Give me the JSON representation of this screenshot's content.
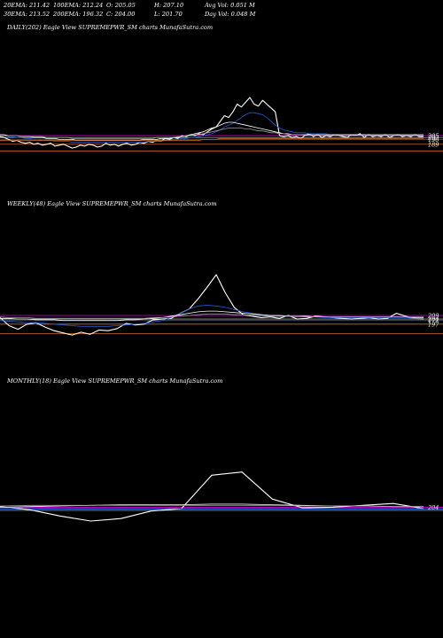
{
  "header": {
    "row1": [
      {
        "id": "ema20",
        "text": "20EMA: 211.42"
      },
      {
        "id": "ema100",
        "text": "100EMA: 212.24"
      },
      {
        "id": "open",
        "text": "O: 205.05"
      },
      {
        "id": "high",
        "text": "H: 207.10"
      },
      {
        "id": "avgvol",
        "text": "Avg Vol: 0.051 M"
      }
    ],
    "row2": [
      {
        "id": "ema30",
        "text": "30EMA: 213.52"
      },
      {
        "id": "ema200",
        "text": "200EMA: 196.32"
      },
      {
        "id": "close",
        "text": "C: 204.00"
      },
      {
        "id": "low",
        "text": "L: 201.70"
      },
      {
        "id": "dayvol",
        "text": "Day Vol: 0.048 M"
      }
    ]
  },
  "colors": {
    "background": "#000000",
    "price": "#ffffff",
    "ema_blue": "#1f5fd6",
    "ema_orange": "#d2691e",
    "ema_magenta": "#d400d4",
    "ema_gray": "#9a9a9a",
    "text": "#ffffff"
  },
  "panels": [
    {
      "id": "daily",
      "title": "DAILY(202) Eagle   View  SUPREMEPWR_SM charts MunafaSutra.com",
      "right_labels": [
        "205",
        "203",
        "196",
        "189"
      ]
    },
    {
      "id": "weekly",
      "title": "WEEKLY(48) Eagle   View  SUPREMEPWR_SM charts MunafaSutra.com",
      "right_labels": [
        "209",
        "204",
        "172",
        "197"
      ]
    },
    {
      "id": "monthly",
      "title": "MONTHLY(18) Eagle   View  SUPREMEPWR_SM charts MunafaSutra.com",
      "right_labels": [
        "204"
      ]
    }
  ],
  "chart_data": [
    {
      "type": "line",
      "title": "DAILY(202) Eagle   View  SUPREMEPWR_SM charts MunafaSutra.com",
      "ylim": [
        180,
        245
      ],
      "hlines": [
        {
          "value": 205,
          "color": "#d400d4"
        },
        {
          "value": 203,
          "color": "#9a9a9a"
        },
        {
          "value": 201,
          "color": "#1f5fd6"
        },
        {
          "value": 196,
          "color": "#d2691e"
        },
        {
          "value": 189,
          "color": "#d2691e"
        }
      ],
      "series": [
        {
          "color": "#ffffff",
          "values": [
            204,
            203,
            201,
            199,
            200,
            198,
            197,
            198,
            196,
            197,
            195,
            196,
            197,
            194,
            195,
            196,
            194,
            192,
            193,
            195,
            194,
            196,
            195,
            193,
            194,
            197,
            195,
            196,
            194,
            196,
            197,
            195,
            196,
            198,
            197,
            199,
            198,
            200,
            199,
            202,
            201,
            203,
            202,
            205,
            204,
            206,
            205,
            207,
            206,
            209,
            212,
            214,
            220,
            226,
            224,
            230,
            238,
            235,
            240,
            245,
            238,
            236,
            242,
            238,
            234,
            230,
            205,
            204,
            205,
            203,
            204,
            202,
            205,
            207,
            204,
            206,
            203,
            205,
            204,
            206,
            205,
            204,
            203,
            206,
            205,
            207,
            203,
            206,
            204,
            205,
            204,
            206,
            203,
            205,
            206,
            204,
            205,
            204,
            206,
            204,
            204
          ]
        },
        {
          "color": "#1f5fd6",
          "values": [
            205,
            205,
            204,
            204,
            203,
            203,
            202,
            202,
            201,
            201,
            200,
            200,
            200,
            199,
            199,
            199,
            199,
            198,
            198,
            198,
            198,
            198,
            198,
            198,
            198,
            198,
            198,
            198,
            198,
            198,
            198,
            198,
            198,
            198,
            198,
            199,
            199,
            199,
            199,
            200,
            200,
            201,
            201,
            202,
            202,
            203,
            203,
            204,
            205,
            206,
            207,
            209,
            211,
            214,
            216,
            218,
            221,
            224,
            227,
            229,
            229,
            228,
            227,
            224,
            220,
            216,
            213,
            211,
            210,
            209,
            208,
            208,
            208,
            207,
            207,
            207,
            207,
            207,
            206,
            206,
            206,
            206,
            206,
            206,
            206,
            206,
            206,
            205,
            205,
            205,
            205,
            205,
            205,
            205,
            205,
            205,
            205,
            205,
            205,
            205,
            205
          ]
        },
        {
          "color": "#ffffff",
          "values": [
            206,
            206,
            205,
            205,
            205,
            204,
            204,
            204,
            203,
            203,
            203,
            202,
            202,
            202,
            201,
            201,
            201,
            201,
            200,
            200,
            200,
            200,
            200,
            200,
            200,
            200,
            200,
            200,
            200,
            200,
            200,
            200,
            200,
            200,
            201,
            201,
            201,
            201,
            202,
            202,
            202,
            203,
            203,
            204,
            205,
            206,
            207,
            208,
            209,
            211,
            213,
            214,
            216,
            218,
            219,
            219,
            218,
            217,
            216,
            215,
            214,
            213,
            212,
            211,
            210,
            209,
            208,
            207,
            207,
            206,
            206,
            206,
            206,
            206,
            206,
            206,
            206,
            206,
            206,
            206,
            206,
            206,
            206,
            206,
            206,
            206,
            206,
            206,
            206,
            206,
            206,
            206,
            206,
            206,
            206,
            206,
            206,
            206,
            206,
            206,
            206
          ]
        },
        {
          "color": "#9a9a9a",
          "values": [
            205,
            205,
            205,
            205,
            205,
            204,
            204,
            204,
            204,
            204,
            204,
            203,
            203,
            203,
            203,
            203,
            203,
            202,
            202,
            202,
            202,
            202,
            202,
            202,
            202,
            202,
            202,
            202,
            202,
            202,
            202,
            202,
            202,
            202,
            202,
            202,
            202,
            203,
            203,
            203,
            203,
            203,
            204,
            204,
            205,
            205,
            206,
            206,
            207,
            208,
            209,
            210,
            211,
            212,
            213,
            213,
            213,
            213,
            212,
            212,
            211,
            210,
            210,
            209,
            208,
            208,
            207,
            207,
            206,
            206,
            206,
            206,
            205,
            205,
            205,
            205,
            205,
            205,
            205,
            205,
            205,
            205,
            205,
            205,
            205,
            205,
            205,
            205,
            205,
            205,
            205,
            205,
            205,
            205,
            205,
            205,
            205,
            205,
            205,
            205,
            205
          ]
        },
        {
          "color": "#d2691e",
          "values": [
            200,
            200,
            200,
            200,
            200,
            200,
            200,
            200,
            200,
            200,
            200,
            200,
            200,
            200,
            200,
            200,
            200,
            200,
            200,
            200,
            200,
            200,
            200,
            200,
            200,
            200,
            200,
            200,
            200,
            200,
            200,
            200,
            200,
            200,
            200,
            200,
            200,
            200,
            200,
            200,
            200,
            200,
            200,
            200,
            200,
            200,
            200,
            200,
            201,
            201,
            201,
            201,
            202,
            202,
            202,
            202,
            202,
            202,
            202,
            202,
            202,
            202,
            202,
            202,
            202,
            202,
            202,
            202,
            202,
            202,
            202,
            202,
            202,
            202,
            202,
            202,
            202,
            202,
            202,
            202,
            202,
            202,
            202,
            202,
            202,
            202,
            202,
            202,
            202,
            202,
            202,
            202,
            202,
            202,
            202,
            202,
            202,
            202,
            202,
            202,
            202
          ]
        }
      ]
    },
    {
      "type": "line",
      "title": "WEEKLY(48) Eagle   View  SUPREMEPWR_SM charts MunafaSutra.com",
      "ylim": [
        170,
        265
      ],
      "hlines": [
        {
          "value": 209,
          "color": "#d400d4"
        },
        {
          "value": 204,
          "color": "#9a9a9a"
        },
        {
          "value": 202,
          "color": "#1f5fd6"
        },
        {
          "value": 197,
          "color": "#d2691e"
        },
        {
          "value": 184,
          "color": "#d2691e"
        }
      ],
      "series": [
        {
          "color": "#ffffff",
          "values": [
            206,
            195,
            190,
            197,
            199,
            193,
            188,
            185,
            182,
            186,
            183,
            189,
            188,
            191,
            198,
            196,
            197,
            203,
            204,
            205,
            212,
            218,
            232,
            248,
            265,
            240,
            220,
            210,
            208,
            206,
            207,
            205,
            209,
            204,
            205,
            208,
            207,
            206,
            205,
            204,
            205,
            206,
            204,
            205,
            212,
            208,
            205,
            204
          ]
        },
        {
          "color": "#1f5fd6",
          "values": [
            202,
            201,
            200,
            199,
            199,
            198,
            197,
            196,
            195,
            194,
            194,
            194,
            194,
            195,
            196,
            197,
            198,
            200,
            202,
            206,
            212,
            218,
            222,
            223,
            222,
            220,
            217,
            214,
            212,
            210,
            209,
            208,
            208,
            207,
            207,
            207,
            206,
            206,
            206,
            206,
            206,
            206,
            206,
            206,
            206,
            206,
            205,
            205
          ]
        },
        {
          "color": "#ffffff",
          "values": [
            205,
            205,
            204,
            204,
            203,
            203,
            203,
            202,
            202,
            202,
            202,
            202,
            202,
            202,
            203,
            203,
            204,
            205,
            206,
            208,
            210,
            212,
            214,
            215,
            215,
            214,
            213,
            212,
            211,
            210,
            209,
            209,
            208,
            208,
            208,
            207,
            207,
            207,
            207,
            207,
            207,
            207,
            207,
            207,
            207,
            207,
            206,
            206
          ]
        },
        {
          "color": "#9a9a9a",
          "values": [
            207,
            206,
            206,
            206,
            205,
            205,
            205,
            205,
            205,
            205,
            205,
            205,
            205,
            205,
            205,
            205,
            205,
            206,
            206,
            207,
            208,
            209,
            210,
            211,
            211,
            211,
            210,
            210,
            209,
            209,
            208,
            208,
            208,
            208,
            207,
            207,
            207,
            207,
            207,
            207,
            207,
            207,
            207,
            207,
            207,
            207,
            207,
            207
          ]
        }
      ]
    },
    {
      "type": "line",
      "title": "MONTHLY(18) Eagle   View  SUPREMEPWR_SM charts MunafaSutra.com",
      "ylim": [
        175,
        285
      ],
      "hlines": [
        {
          "value": 204,
          "color": "#d400d4"
        },
        {
          "value": 201,
          "color": "#1f5fd6"
        },
        {
          "value": 199,
          "color": "#9a9a9a"
        }
      ],
      "series": [
        {
          "color": "#ffffff",
          "values": [
            205,
            200,
            190,
            182,
            186,
            198,
            202,
            255,
            260,
            217,
            203,
            204,
            207,
            210,
            202
          ]
        },
        {
          "color": "#1f5fd6",
          "values": [
            203,
            203,
            202,
            202,
            202,
            202,
            202,
            202,
            202,
            202,
            202,
            202,
            202,
            202,
            202
          ]
        },
        {
          "color": "#ffffff",
          "values": [
            204,
            205,
            206,
            207,
            208,
            208,
            208,
            209,
            209,
            208,
            207,
            206,
            206,
            205,
            205
          ]
        },
        {
          "color": "#9a9a9a",
          "values": [
            206,
            207,
            207,
            207,
            207,
            207,
            207,
            207,
            207,
            207,
            206,
            206,
            206,
            205,
            205
          ]
        }
      ]
    }
  ]
}
